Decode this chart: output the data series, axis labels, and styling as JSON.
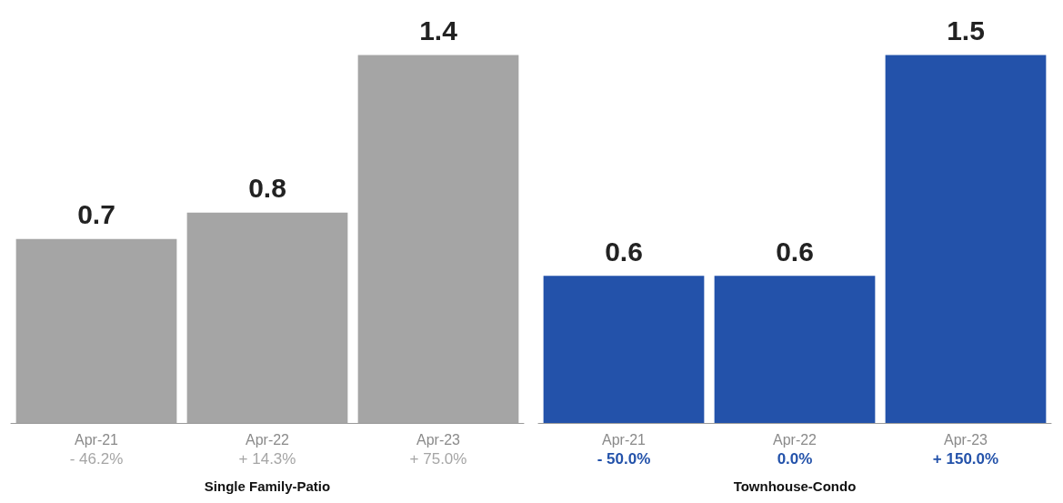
{
  "chart_data": [
    {
      "type": "bar",
      "categories": [
        "Apr-21\n- 46.2%",
        "Apr-22\n+ 14.3%",
        "Apr-23\n+ 75.0%"
      ],
      "values": [
        0.7,
        0.8,
        1.4
      ],
      "color": "#a5a5a5",
      "data_labels": true,
      "xlabel": "Single Family-Patio"
    },
    {
      "type": "bar",
      "categories": [
        "Apr-21\n- 50.0%",
        "Apr-22\n0.0%",
        "Apr-23\n+ 150.0%"
      ],
      "values": [
        0.6,
        0.6,
        1.5
      ],
      "color": "#2352aa",
      "data_labels": true,
      "xlabel": "Townhouse-Condo"
    }
  ]
}
